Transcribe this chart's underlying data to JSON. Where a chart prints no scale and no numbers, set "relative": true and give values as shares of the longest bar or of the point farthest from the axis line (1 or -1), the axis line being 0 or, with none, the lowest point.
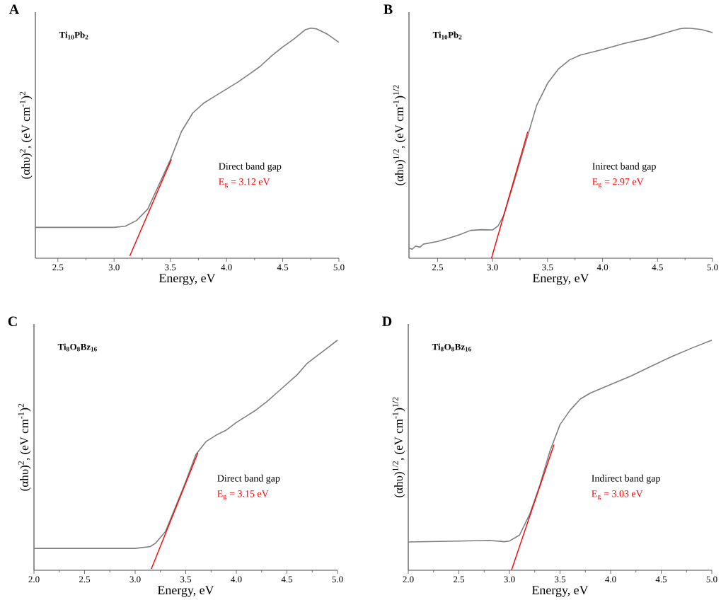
{
  "chart_data": [
    {
      "type": "line",
      "title": "A",
      "subtitle": "**Ti$_{10}$Pb$_{2}$**",
      "xlabel": "Energy, eV",
      "ylabel": "(αhυ)$^{2}$, (eV cm$^{-1}$)$^{2}$",
      "relative": true,
      "xlim": [
        2.3,
        5.0
      ],
      "xticks": [
        {
          "value": 2.5,
          "label": "2.5"
        },
        {
          "value": 3.0,
          "label": "3.0"
        },
        {
          "value": 3.5,
          "label": "3.5"
        },
        {
          "value": 4.0,
          "label": "4.0"
        },
        {
          "value": 4.5,
          "label": "4.5"
        },
        {
          "value": 5.0,
          "label": "5.0"
        }
      ],
      "annotations": [
        "Direct band gap",
        "E$_{g}$ = 3.12 eV"
      ],
      "series": [
        {
          "color": "#7f7f7f",
          "x": [
            2.3,
            2.5,
            3.0,
            3.1,
            3.2,
            3.3,
            3.5,
            3.6,
            3.7,
            3.8,
            3.9,
            4.0,
            4.1,
            4.2,
            4.3,
            4.4,
            4.5,
            4.6,
            4.7,
            4.75,
            4.8,
            4.9,
            5.0
          ],
          "values": [
            0.134,
            0.134,
            0.134,
            0.139,
            0.164,
            0.214,
            0.427,
            0.551,
            0.631,
            0.675,
            0.705,
            0.735,
            0.765,
            0.799,
            0.834,
            0.879,
            0.918,
            0.953,
            0.993,
            1.0,
            0.997,
            0.973,
            0.938
          ]
        },
        {
          "color": "#ff0000",
          "x": [
            3.14,
            3.51
          ],
          "values": [
            0.01,
            0.43
          ]
        }
      ]
    },
    {
      "type": "line",
      "title": "B",
      "subtitle": "**Ti$_{10}$Pb$_{2}$**",
      "xlabel": "Energy, eV",
      "ylabel": "(αhυ)$^{1/2}$, (eV cm$^{-1}$)$^{1/2}$",
      "relative": true,
      "xlim": [
        2.24,
        5.0
      ],
      "xticks": [
        {
          "value": 2.5,
          "label": "2.5"
        },
        {
          "value": 3.0,
          "label": "3.0"
        },
        {
          "value": 3.5,
          "label": "3.5"
        },
        {
          "value": 4.0,
          "label": "4.0"
        },
        {
          "value": 4.5,
          "label": "4.5"
        },
        {
          "value": 5.0,
          "label": "5.0"
        }
      ],
      "annotations": [
        "Inirect band gap",
        "E$_{g}$ = 2.97 eV"
      ],
      "series": [
        {
          "color": "#7f7f7f",
          "x": [
            2.24,
            2.27,
            2.3,
            2.34,
            2.37,
            2.5,
            2.6,
            2.7,
            2.8,
            2.9,
            3.0,
            3.05,
            3.1,
            3.2,
            3.4,
            3.5,
            3.6,
            3.7,
            3.8,
            4.0,
            4.2,
            4.4,
            4.6,
            4.7,
            4.75,
            4.8,
            4.9,
            5.0
          ],
          "values": [
            0.044,
            0.039,
            0.053,
            0.048,
            0.061,
            0.073,
            0.087,
            0.102,
            0.121,
            0.124,
            0.123,
            0.14,
            0.184,
            0.339,
            0.663,
            0.76,
            0.823,
            0.862,
            0.883,
            0.907,
            0.934,
            0.955,
            0.983,
            0.997,
            1.0,
            0.999,
            0.994,
            0.981
          ]
        },
        {
          "color": "#ff0000",
          "x": [
            2.99,
            3.32
          ],
          "values": [
            0.0,
            0.55
          ]
        }
      ]
    },
    {
      "type": "line",
      "title": "C",
      "subtitle": "**Ti$_{8}$O$_{8}$Bz$_{16}$**",
      "xlabel": "Energy, eV",
      "ylabel": "(αhυ)$^{2}$, (eV cm$^{-1}$)$^{2}$",
      "relative": true,
      "xlim": [
        2.0,
        5.0
      ],
      "xticks": [
        {
          "value": 2.0,
          "label": "2.0"
        },
        {
          "value": 2.5,
          "label": "2.5"
        },
        {
          "value": 3.0,
          "label": "3.0"
        },
        {
          "value": 3.5,
          "label": "3.5"
        },
        {
          "value": 4.0,
          "label": "4.0"
        },
        {
          "value": 4.5,
          "label": "4.5"
        },
        {
          "value": 5.0,
          "label": "5.0"
        }
      ],
      "annotations": [
        "Direct band gap",
        "E$_{g}$ = 3.15 eV"
      ],
      "series": [
        {
          "color": "#7f7f7f",
          "x": [
            2.0,
            2.5,
            3.0,
            3.15,
            3.2,
            3.3,
            3.5,
            3.6,
            3.7,
            3.8,
            3.9,
            4.0,
            4.1,
            4.2,
            4.3,
            4.4,
            4.5,
            4.6,
            4.7,
            4.8,
            4.9,
            5.0
          ],
          "values": [
            0.095,
            0.095,
            0.095,
            0.103,
            0.117,
            0.168,
            0.385,
            0.503,
            0.559,
            0.587,
            0.609,
            0.642,
            0.67,
            0.698,
            0.732,
            0.771,
            0.81,
            0.849,
            0.899,
            0.933,
            0.966,
            1.0
          ]
        },
        {
          "color": "#ff0000",
          "x": [
            3.16,
            3.62
          ],
          "values": [
            0.006,
            0.51
          ]
        }
      ]
    },
    {
      "type": "line",
      "title": "D",
      "subtitle": "**Ti$_{8}$O$_{8}$Bz$_{16}$**",
      "xlabel": "Energy, eV",
      "ylabel": "(αhυ)$^{1/2}$, (eV cm$^{-1}$)$^{1/2}$",
      "relative": true,
      "xlim": [
        2.0,
        5.0
      ],
      "xticks": [
        {
          "value": 2.0,
          "label": "2.0"
        },
        {
          "value": 2.5,
          "label": "2.5"
        },
        {
          "value": 3.0,
          "label": "3.0"
        },
        {
          "value": 3.5,
          "label": "3.5"
        },
        {
          "value": 4.0,
          "label": "4.0"
        },
        {
          "value": 4.5,
          "label": "4.5"
        },
        {
          "value": 5.0,
          "label": "5.0"
        }
      ],
      "annotations": [
        "Indirect band gap",
        "E$_{g}$ = 3.03 eV"
      ],
      "series": [
        {
          "color": "#7f7f7f",
          "x": [
            2.0,
            2.5,
            2.8,
            2.95,
            3.0,
            3.1,
            3.2,
            3.3,
            3.4,
            3.5,
            3.6,
            3.7,
            3.8,
            4.0,
            4.2,
            4.4,
            4.6,
            4.8,
            5.0
          ],
          "values": [
            0.123,
            0.127,
            0.13,
            0.124,
            0.127,
            0.153,
            0.243,
            0.369,
            0.517,
            0.633,
            0.696,
            0.744,
            0.77,
            0.807,
            0.844,
            0.886,
            0.928,
            0.965,
            1.0
          ]
        },
        {
          "color": "#ff0000",
          "x": [
            3.02,
            3.44
          ],
          "values": [
            0.0,
            0.546
          ]
        }
      ]
    }
  ]
}
